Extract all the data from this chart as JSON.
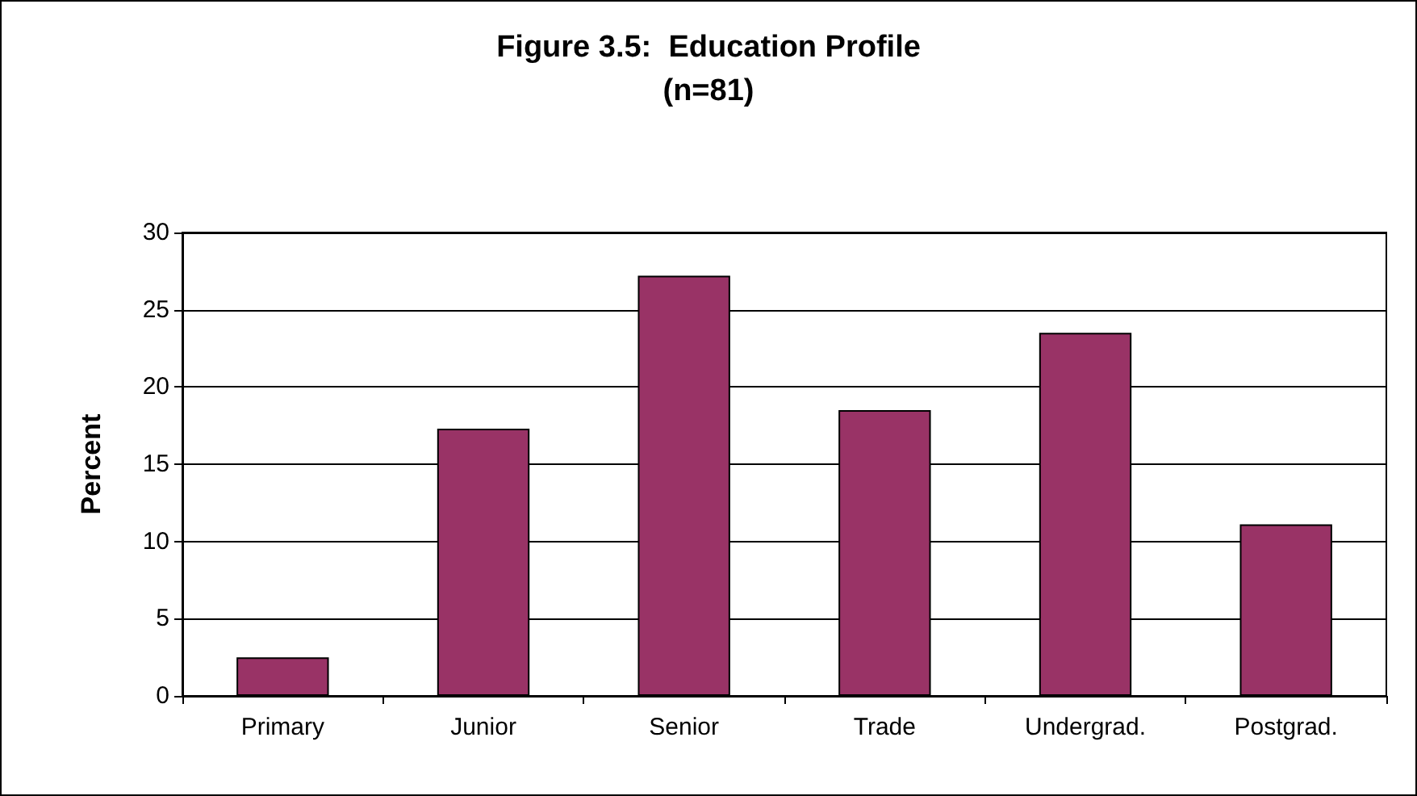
{
  "chart_data": {
    "type": "bar",
    "title": "Figure 3.5:  Education Profile",
    "subtitle": "(n=81)",
    "ylabel": "Percent",
    "categories": [
      "Primary",
      "Junior",
      "Senior",
      "Trade",
      "Undergrad.",
      "Postgrad."
    ],
    "values": [
      2.5,
      17.3,
      27.2,
      18.5,
      23.5,
      11.1
    ],
    "color": "#993366",
    "ylim": [
      0,
      30
    ],
    "yticks": [
      0,
      5,
      10,
      15,
      20,
      25,
      30
    ],
    "grid": "y"
  }
}
